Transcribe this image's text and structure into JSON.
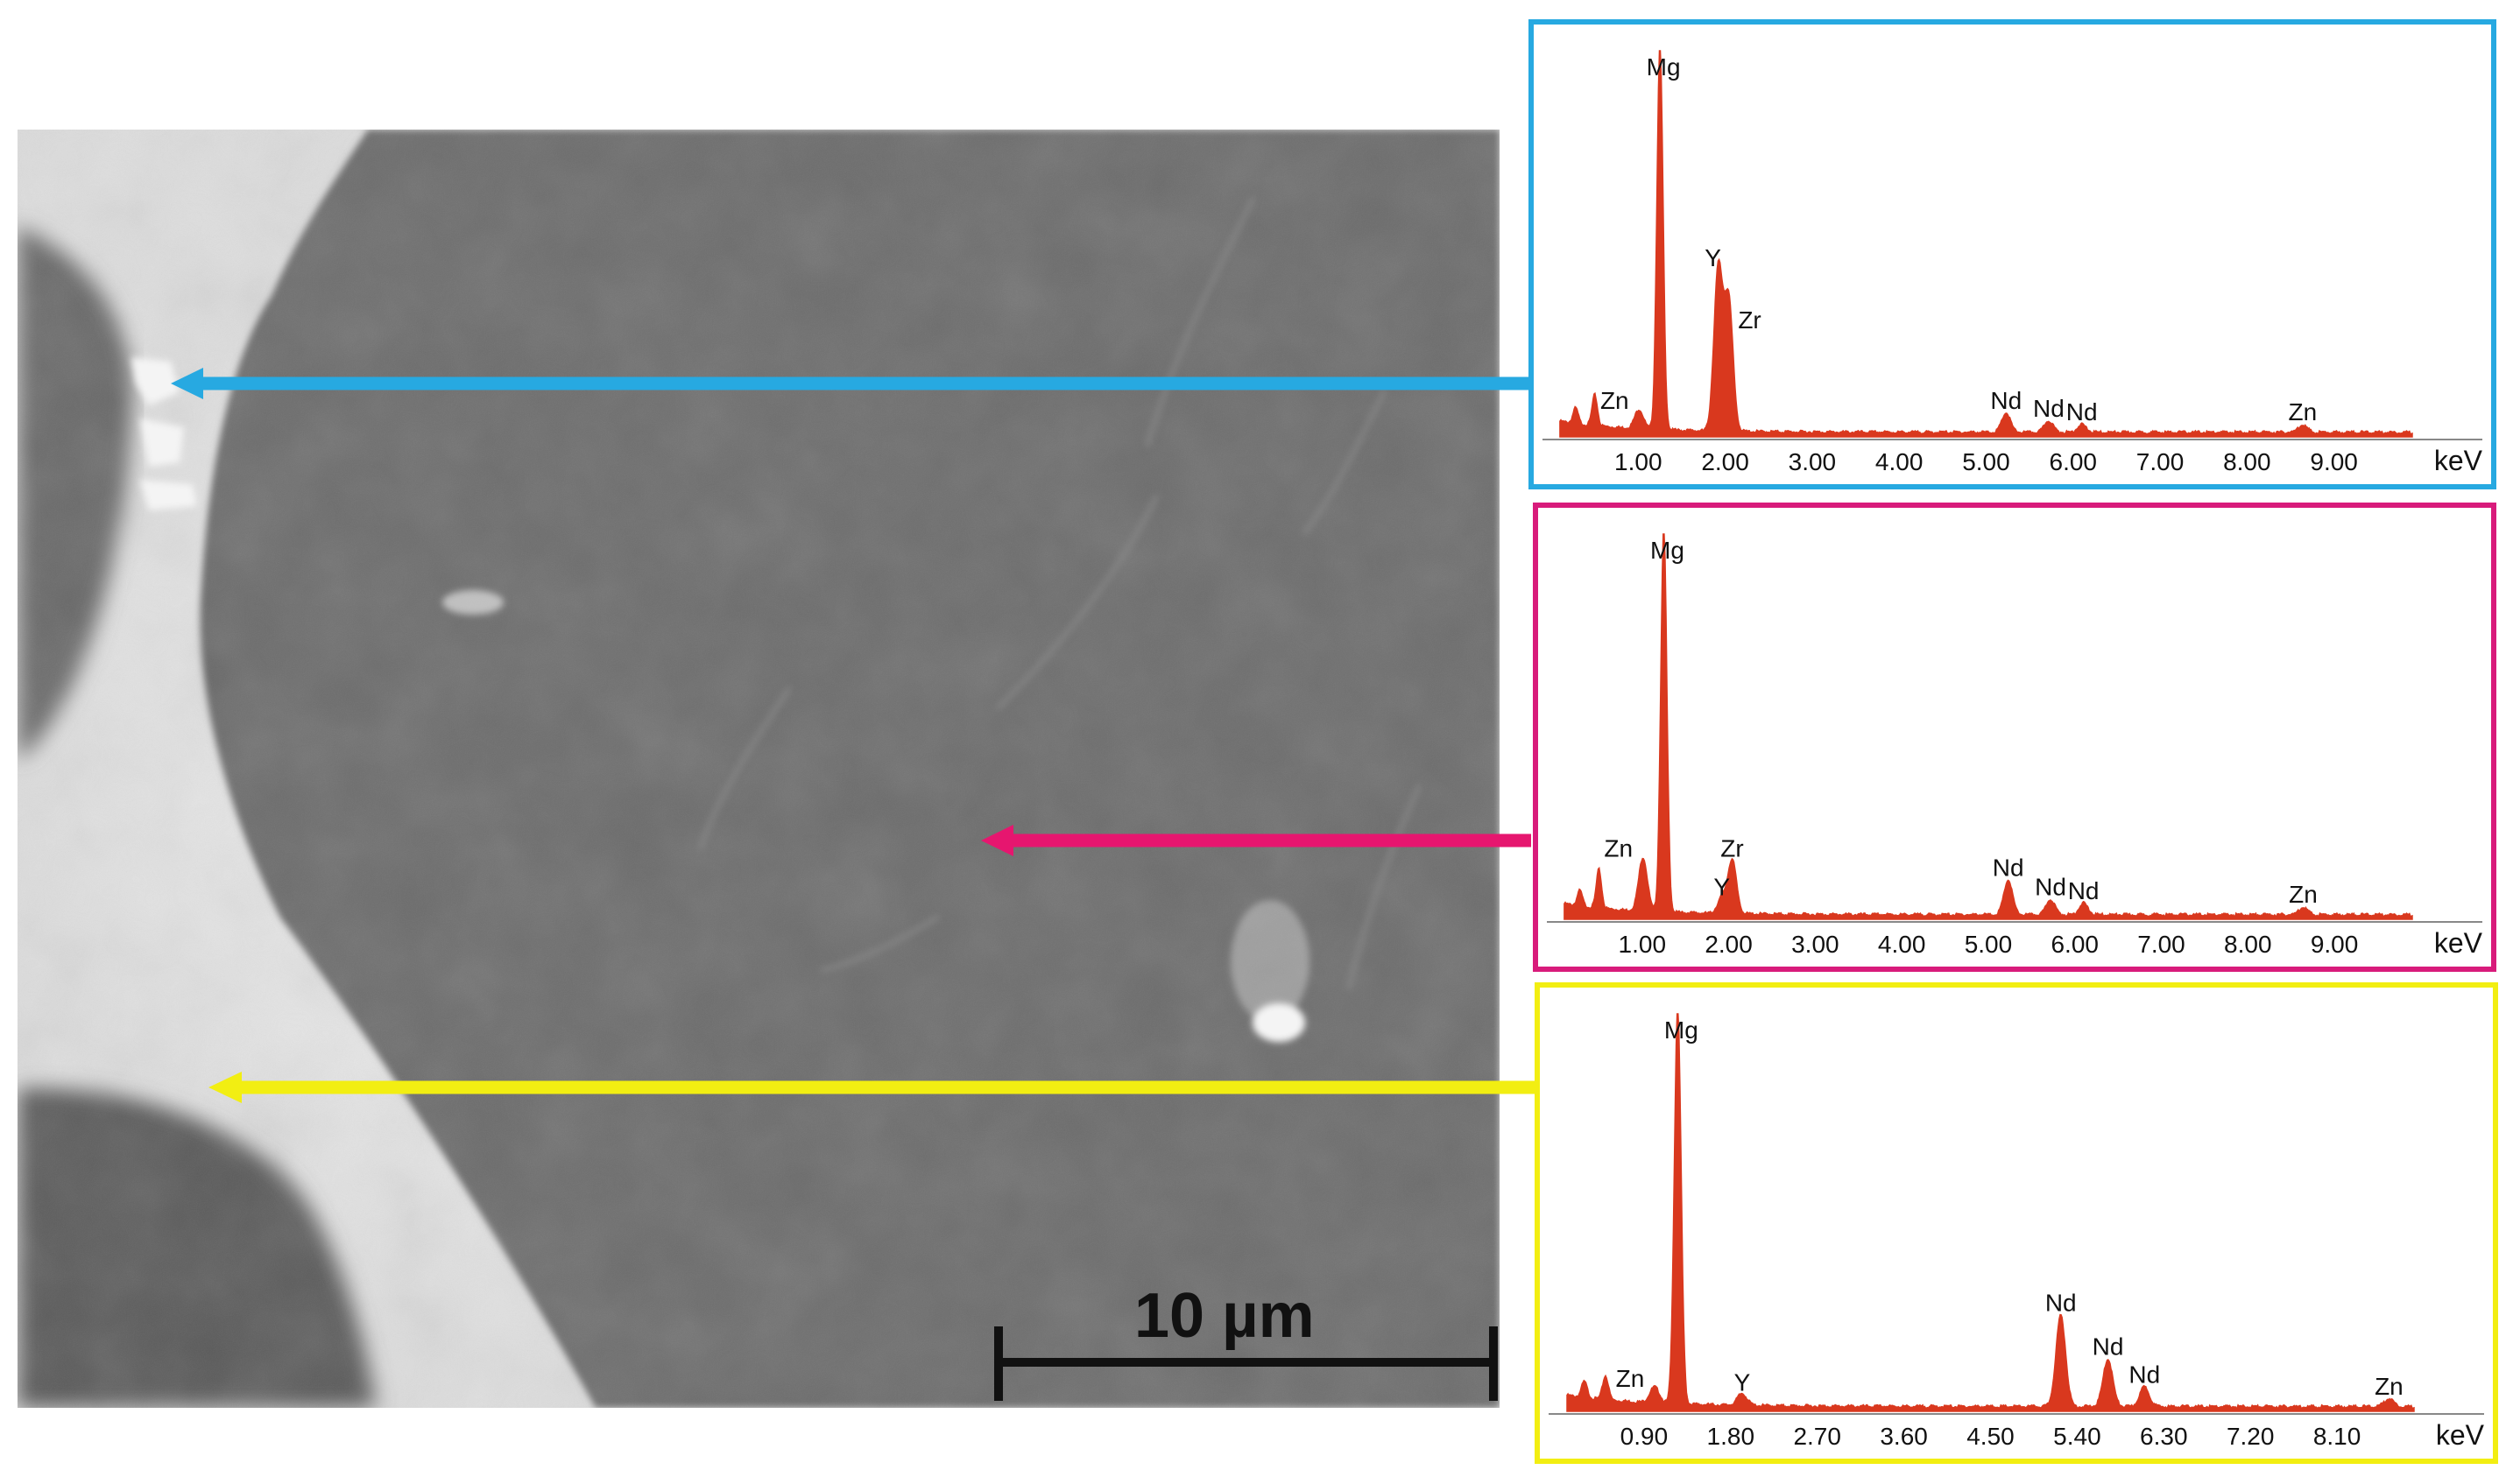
{
  "figure": {
    "scale_bar_label": "10 µm",
    "colors": {
      "arrow_top": "#27a9e1",
      "arrow_middle": "#e6166f",
      "arrow_bottom": "#f2ee12",
      "spectrum_fill": "#d9381e"
    }
  },
  "chart_data": [
    {
      "type": "area",
      "panel": "top",
      "border_color": "#27a9e1",
      "xlabel": "keV",
      "xlim": [
        0,
        9.9
      ],
      "x_ticks": [
        "1.00",
        "2.00",
        "3.00",
        "4.00",
        "5.00",
        "6.00",
        "7.00",
        "8.00",
        "9.00"
      ],
      "x_tick_values": [
        1,
        2,
        3,
        4,
        5,
        6,
        7,
        8,
        9
      ],
      "peak_labels": [
        {
          "element": "Mg",
          "x": 1.25,
          "intensity": 1.0
        },
        {
          "element": "Y",
          "x": 1.92,
          "intensity": 0.42
        },
        {
          "element": "Zr",
          "x": 2.04,
          "intensity": 0.34
        },
        {
          "element": "Zn",
          "x": 1.01,
          "intensity": 0.05
        },
        {
          "element": "Nd",
          "x": 5.23,
          "intensity": 0.05
        },
        {
          "element": "Nd",
          "x": 5.72,
          "intensity": 0.03
        },
        {
          "element": "Nd",
          "x": 6.1,
          "intensity": 0.02
        },
        {
          "element": "Zn",
          "x": 8.64,
          "intensity": 0.02
        }
      ],
      "baseline_peaks": [
        {
          "x": 0.28,
          "intensity": 0.04
        },
        {
          "x": 0.5,
          "intensity": 0.08
        }
      ]
    },
    {
      "type": "area",
      "panel": "middle",
      "border_color": "#d81b7b",
      "xlabel": "keV",
      "xlim": [
        0,
        9.9
      ],
      "x_ticks": [
        "1.00",
        "2.00",
        "3.00",
        "4.00",
        "5.00",
        "6.00",
        "7.00",
        "8.00",
        "9.00"
      ],
      "x_tick_values": [
        1,
        2,
        3,
        4,
        5,
        6,
        7,
        8,
        9
      ],
      "peak_labels": [
        {
          "element": "Mg",
          "x": 1.25,
          "intensity": 1.0
        },
        {
          "element": "Zn",
          "x": 1.01,
          "intensity": 0.14
        },
        {
          "element": "Y",
          "x": 1.92,
          "intensity": 0.04
        },
        {
          "element": "Zr",
          "x": 2.04,
          "intensity": 0.14
        },
        {
          "element": "Nd",
          "x": 5.23,
          "intensity": 0.09
        },
        {
          "element": "Nd",
          "x": 5.72,
          "intensity": 0.04
        },
        {
          "element": "Nd",
          "x": 6.1,
          "intensity": 0.03
        },
        {
          "element": "Zn",
          "x": 8.64,
          "intensity": 0.02
        }
      ],
      "baseline_peaks": [
        {
          "x": 0.28,
          "intensity": 0.04
        },
        {
          "x": 0.5,
          "intensity": 0.1
        }
      ]
    },
    {
      "type": "area",
      "panel": "bottom",
      "border_color": "#f2ee12",
      "xlabel": "keV",
      "xlim": [
        0,
        8.9
      ],
      "x_ticks": [
        "0.90",
        "1.80",
        "2.70",
        "3.60",
        "4.50",
        "5.40",
        "6.30",
        "7.20",
        "8.10"
      ],
      "x_tick_values": [
        0.9,
        1.8,
        2.7,
        3.6,
        4.5,
        5.4,
        6.3,
        7.2,
        8.1
      ],
      "peak_labels": [
        {
          "element": "Mg",
          "x": 1.25,
          "intensity": 1.0
        },
        {
          "element": "Zn",
          "x": 1.01,
          "intensity": 0.04
        },
        {
          "element": "Y",
          "x": 1.92,
          "intensity": 0.03
        },
        {
          "element": "Nd",
          "x": 5.23,
          "intensity": 0.23
        },
        {
          "element": "Nd",
          "x": 5.72,
          "intensity": 0.12
        },
        {
          "element": "Nd",
          "x": 6.1,
          "intensity": 0.05
        },
        {
          "element": "Zn",
          "x": 8.64,
          "intensity": 0.02
        }
      ],
      "baseline_peaks": [
        {
          "x": 0.28,
          "intensity": 0.04
        },
        {
          "x": 0.5,
          "intensity": 0.06
        }
      ]
    }
  ]
}
